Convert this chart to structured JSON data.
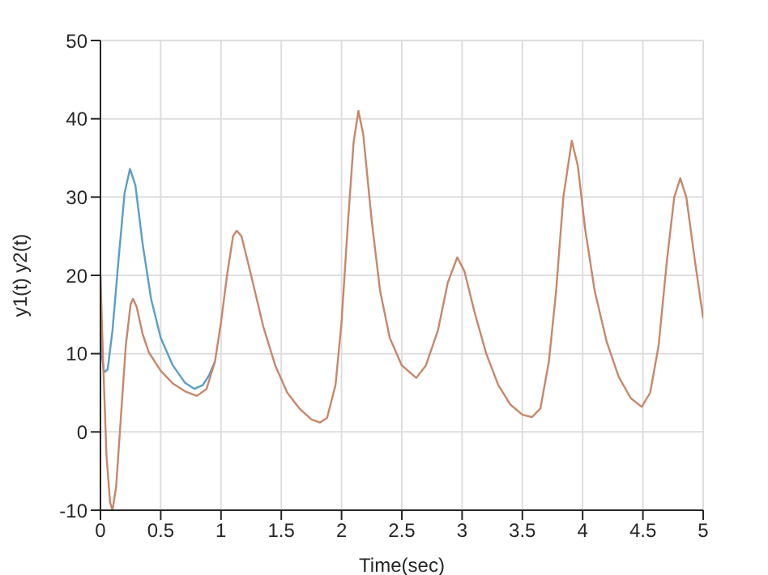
{
  "chart_data": {
    "type": "line",
    "xlabel": "Time(sec)",
    "ylabel": "y1(t) y2(t)",
    "xlim": [
      0,
      5
    ],
    "xticks": [
      0,
      0.5,
      1,
      1.5,
      2,
      2.5,
      3,
      3.5,
      4,
      4.5,
      5
    ],
    "ylim": [
      -10,
      50
    ],
    "yticks": [
      -10,
      0,
      10,
      20,
      30,
      40,
      50
    ],
    "grid": true,
    "marker": "none",
    "line_style": "solid",
    "series": [
      {
        "color": "#5a9ec9",
        "x": [
          0,
          0.01,
          0.03,
          0.06,
          0.1,
          0.15,
          0.2,
          0.245,
          0.29,
          0.35,
          0.42,
          0.5,
          0.6,
          0.7,
          0.78,
          0.85,
          0.9,
          0.95
        ],
        "values": [
          20,
          10,
          7.6,
          8,
          13,
          22,
          30.5,
          33.6,
          31.5,
          24,
          17,
          12,
          8.5,
          6.3,
          5.5,
          6,
          7.2,
          9
        ]
      },
      {
        "color": "#c8876a",
        "x": [
          0,
          0.02,
          0.05,
          0.08,
          0.1,
          0.13,
          0.17,
          0.21,
          0.25,
          0.27,
          0.3,
          0.35,
          0.4,
          0.5,
          0.6,
          0.7,
          0.8,
          0.88,
          0.95,
          1.0,
          1.05,
          1.1,
          1.13,
          1.17,
          1.25,
          1.35,
          1.45,
          1.55,
          1.65,
          1.75,
          1.82,
          1.88,
          1.95,
          2.0,
          2.05,
          2.1,
          2.14,
          2.18,
          2.25,
          2.32,
          2.4,
          2.5,
          2.62,
          2.7,
          2.8,
          2.88,
          2.96,
          3.02,
          3.1,
          3.2,
          3.3,
          3.4,
          3.5,
          3.58,
          3.65,
          3.72,
          3.78,
          3.84,
          3.91,
          3.96,
          4.02,
          4.1,
          4.2,
          4.3,
          4.4,
          4.49,
          4.56,
          4.63,
          4.7,
          4.76,
          4.81,
          4.86,
          4.93,
          5
        ],
        "values": [
          20,
          10,
          -3,
          -9,
          -10,
          -7,
          2,
          11,
          16.3,
          17,
          16,
          12.5,
          10.2,
          7.8,
          6.2,
          5.2,
          4.6,
          5.5,
          9,
          14,
          20,
          25,
          25.7,
          25,
          20,
          13.5,
          8.5,
          5,
          3,
          1.6,
          1.2,
          1.8,
          6,
          14,
          26,
          37,
          41,
          38,
          27,
          18,
          12,
          8.5,
          6.9,
          8.5,
          13,
          19,
          22.3,
          20.5,
          15.5,
          10,
          6,
          3.5,
          2.2,
          1.9,
          3,
          9,
          18,
          30,
          37.2,
          34,
          26,
          18,
          11.5,
          7,
          4.3,
          3.2,
          5,
          11,
          22,
          30,
          32.4,
          30,
          22,
          14.5
        ]
      }
    ]
  }
}
